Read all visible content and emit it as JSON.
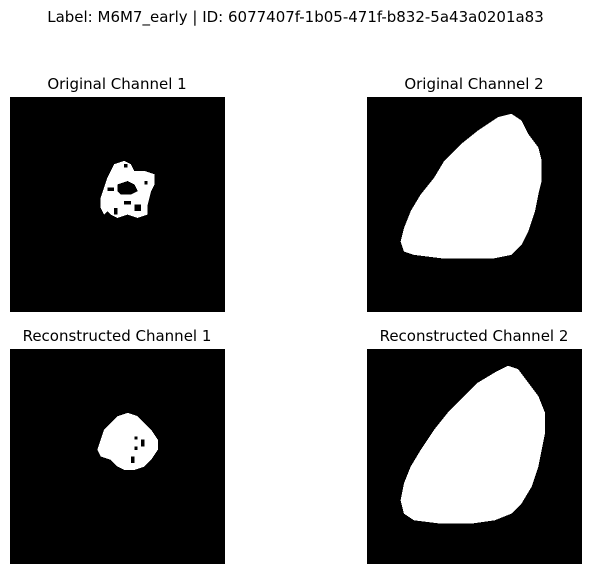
{
  "figure": {
    "suptitle": "Label: M6M7_early | ID: 6077407f-1b05-471f-b832-5a43a0201a83",
    "colors": {
      "background": "#000000",
      "foreground": "#ffffff"
    },
    "panels": [
      {
        "title": "Original Channel 1"
      },
      {
        "title": "Original Channel 2"
      },
      {
        "title": "Reconstructed Channel 1"
      },
      {
        "title": "Reconstructed Channel 2"
      }
    ]
  }
}
